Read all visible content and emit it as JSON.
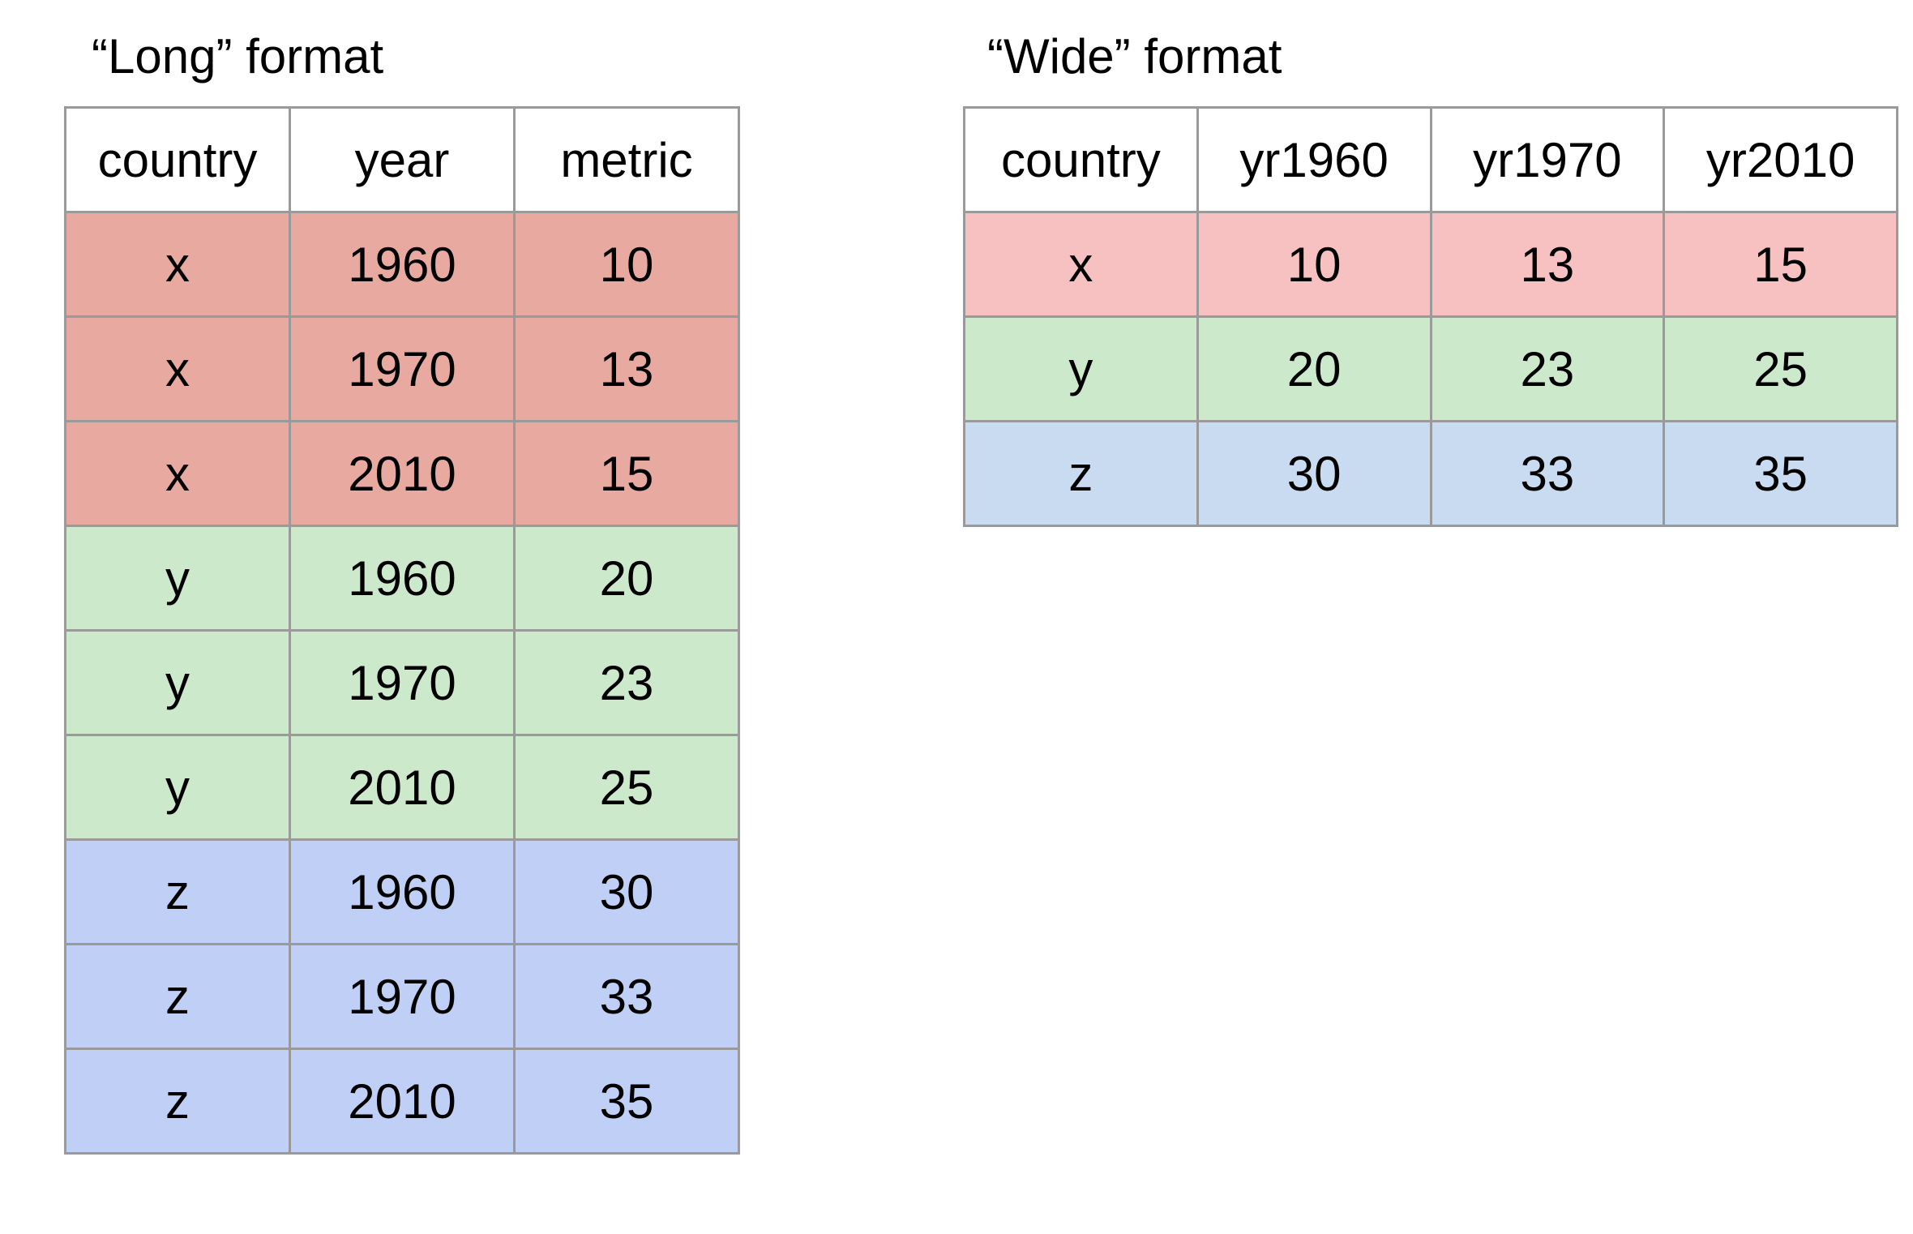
{
  "long": {
    "title": "“Long” format",
    "headers": [
      "country",
      "year",
      "metric"
    ],
    "rows": [
      {
        "cells": [
          "x",
          "1960",
          "10"
        ],
        "color": "#e8a9a0"
      },
      {
        "cells": [
          "x",
          "1970",
          "13"
        ],
        "color": "#e8a9a0"
      },
      {
        "cells": [
          "x",
          "2010",
          "15"
        ],
        "color": "#e8a9a0"
      },
      {
        "cells": [
          "y",
          "1960",
          "20"
        ],
        "color": "#cde9cc"
      },
      {
        "cells": [
          "y",
          "1970",
          "23"
        ],
        "color": "#cde9cc"
      },
      {
        "cells": [
          "y",
          "2010",
          "25"
        ],
        "color": "#cde9cc"
      },
      {
        "cells": [
          "z",
          "1960",
          "30"
        ],
        "color": "#c0cff5"
      },
      {
        "cells": [
          "z",
          "1970",
          "33"
        ],
        "color": "#c0cff5"
      },
      {
        "cells": [
          "z",
          "2010",
          "35"
        ],
        "color": "#c0cff5"
      }
    ]
  },
  "wide": {
    "title": "“Wide” format",
    "headers": [
      "country",
      "yr1960",
      "yr1970",
      "yr2010"
    ],
    "rows": [
      {
        "cells": [
          "x",
          "10",
          "13",
          "15"
        ],
        "color": "#f7c0c1"
      },
      {
        "cells": [
          "y",
          "20",
          "23",
          "25"
        ],
        "color": "#cde9cc"
      },
      {
        "cells": [
          "z",
          "30",
          "33",
          "35"
        ],
        "color": "#c8dbf0"
      }
    ]
  }
}
